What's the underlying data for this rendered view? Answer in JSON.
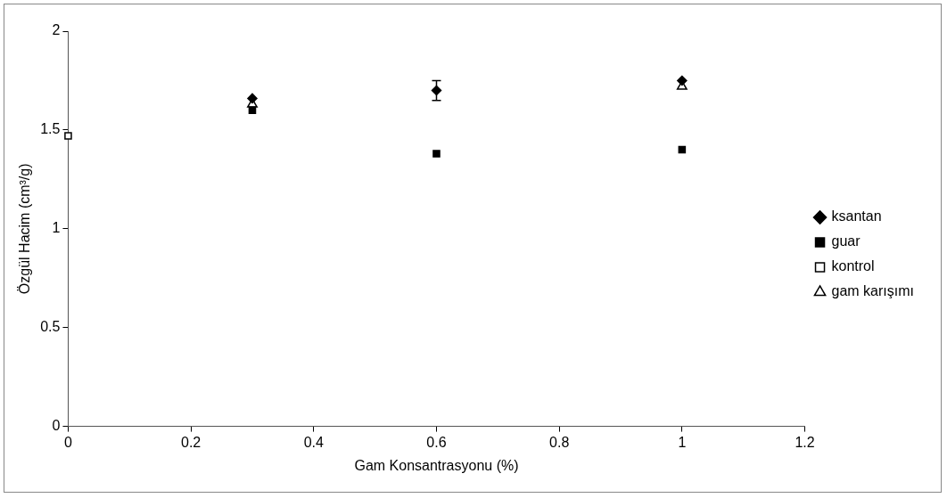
{
  "chart_data": {
    "type": "scatter",
    "xlabel": "Gam Konsantrasyonu (%)",
    "ylabel": "Özgül Hacim (cm³/g)",
    "xlim": [
      0,
      1.2
    ],
    "xticks": [
      0,
      0.2,
      0.4,
      0.6,
      0.8,
      1,
      1.2
    ],
    "ylim": [
      0,
      2
    ],
    "yticks": [
      0,
      0.5,
      1,
      1.5,
      2
    ],
    "grid": false,
    "legend": "right",
    "series": [
      {
        "name": "ksantan",
        "color": "#000000",
        "marker": "diamond",
        "x": [
          0.3,
          0.6,
          1
        ],
        "values": [
          1.66,
          1.7,
          1.75
        ],
        "errors": [
          null,
          0.05,
          null
        ]
      },
      {
        "name": "guar",
        "color": "#000000",
        "marker": "square",
        "x": [
          0.3,
          0.6,
          1
        ],
        "values": [
          1.6,
          1.38,
          1.4
        ]
      },
      {
        "name": "kontrol",
        "color": "#000000",
        "marker": "square",
        "x": [
          0
        ],
        "values": [
          1.47
        ]
      },
      {
        "name": "gam karışımı",
        "color": "#000000",
        "marker": "triangle",
        "x": [
          0.3,
          1
        ],
        "values": [
          1.63,
          1.72
        ]
      }
    ]
  }
}
